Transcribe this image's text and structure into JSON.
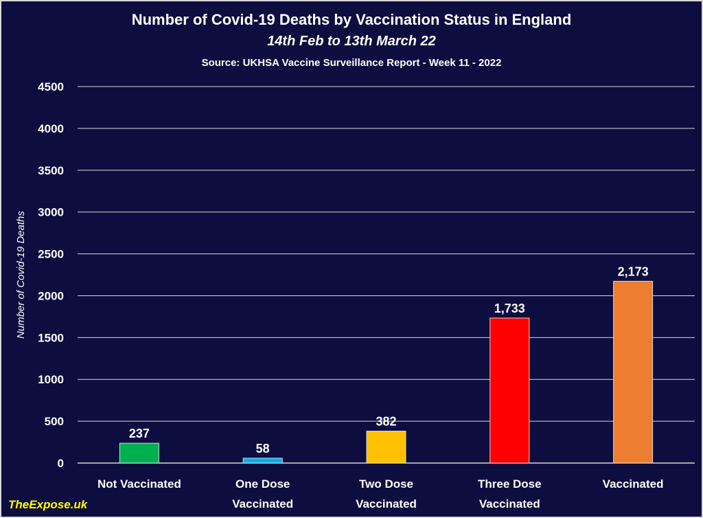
{
  "chart_data": {
    "type": "bar",
    "title": "Number of Covid-19 Deaths by Vaccination Status in England",
    "subtitle": "14th Feb to 13th March 22",
    "source": "Source: UKHSA Vaccine Surveillance Report - Week 11 - 2022",
    "ylabel": "Number of Covid-19 Deaths",
    "xlabel": "",
    "ylim": [
      0,
      4500
    ],
    "yticks": [
      0,
      500,
      1000,
      1500,
      2000,
      2500,
      3000,
      3500,
      4000,
      4500
    ],
    "grid": true,
    "legend": "none",
    "categories": [
      [
        "Not Vaccinated"
      ],
      [
        "One Dose",
        "Vaccinated"
      ],
      [
        "Two Dose",
        "Vaccinated"
      ],
      [
        "Three Dose",
        "Vaccinated"
      ],
      [
        "Vaccinated"
      ]
    ],
    "values": [
      237,
      58,
      382,
      1733,
      2173
    ],
    "data_labels": [
      "237",
      "58",
      "382",
      "1,733",
      "2,173"
    ],
    "colors": [
      "#00b050",
      "#00b0f0",
      "#ffc000",
      "#ff0000",
      "#ed7d31"
    ]
  },
  "watermark": "TheExpose.uk",
  "colors": {
    "background": "#0d0d3f",
    "text": "#ffffff",
    "watermark": "#ffff00"
  }
}
